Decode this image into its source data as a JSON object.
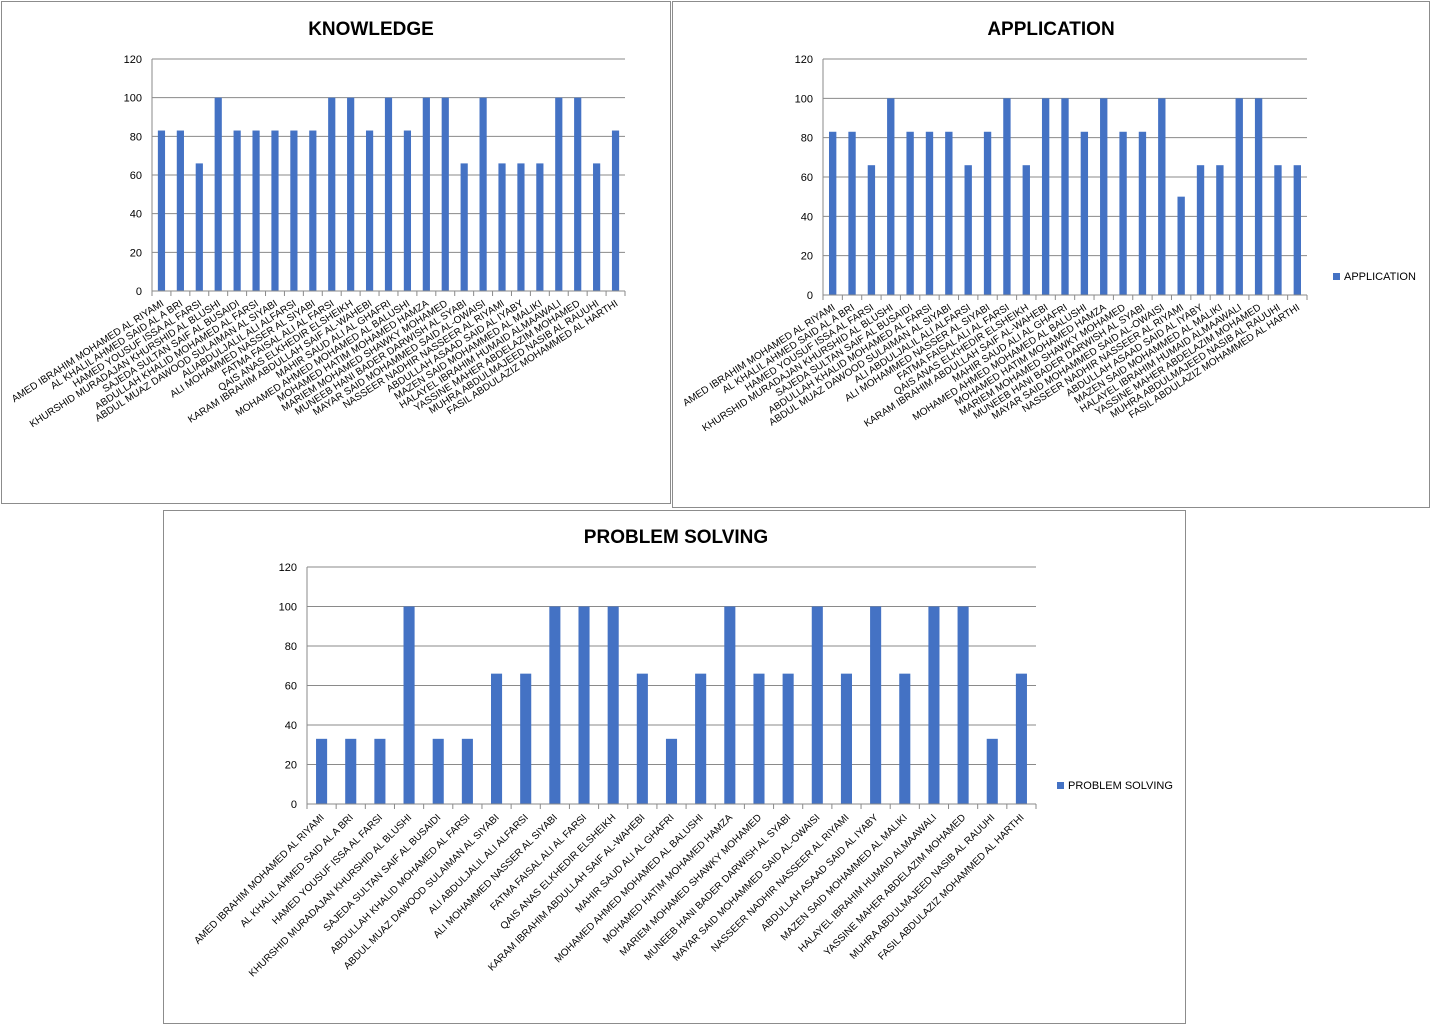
{
  "chart_data": [
    {
      "type": "bar",
      "title": "KNOWLEDGE",
      "xlabel": "",
      "ylabel": "",
      "ylim": [
        0,
        120
      ],
      "yticks": [
        0,
        20,
        40,
        60,
        80,
        100,
        120
      ],
      "grid": true,
      "legend": null,
      "color": "#4472C4",
      "categories": [
        "AMED IBRAHIM MOHAMED  AL RIYAMI",
        "AL KHALIL AHMED SAID AL A BRI",
        "HAMED YOUSUF ISSA AL FARSI",
        "KHURSHID MURADAJAN KHURSHID AL BLUSHI",
        "SAJEDA SULTAN SAIF AL BUSAIDI",
        "ABDULLAH KHALID MOHAMED AL FARSI",
        "ABDUL MUAZ  DAWOOD SULAIMAN AL SIYABI",
        "ALIABDULJALIL ALI ALFARSI",
        "ALI MOHAMMED  NASSER  AL SIYABI",
        "FATMA FAISAL ALI AL FARSI",
        "QAIS ANAS ELKHEDIR  ELSHEIKH",
        "KARAM IBRAHIM  ABDULLAH SAIF AL-WAHEBI",
        "MAHIR SAUD ALI AL GHAFRI",
        "MOHAMED AHMED  MOHAMED AL BALUSHI",
        "MOHAMED HATIM  MOHAMED  HAMZA",
        "MARIEM MOHAMED SHAWKY MOHAMED",
        "MUNEEB HANI BADER  DARWISH AL SYABI",
        "MAYAR SAID MOHAMMED  SAID AL-OWAISI",
        "NASSEER NADHIR NASSEER AL RIYAMI",
        "ABDULLAH ASAAD SAID AL IYABY",
        "MAZEN SAID MOHAMMED AL MALIKI",
        "HALAYEL IBRAHIM  HUMAID  ALMAAWALI",
        "YASSINE MAHER ABDELAZIM  MOHAMED",
        "MUHRA ABDULMAJEED NASIB AL RAUUHI",
        "FASIL ABDULAZIZ MOHAMMED  AL HARTHI"
      ],
      "values": [
        83,
        83,
        66,
        100,
        83,
        83,
        83,
        83,
        83,
        100,
        100,
        83,
        100,
        83,
        100,
        100,
        66,
        100,
        66,
        66,
        66,
        100,
        100,
        66,
        83
      ]
    },
    {
      "type": "bar",
      "title": "APPLICATION",
      "xlabel": "",
      "ylabel": "",
      "ylim": [
        0,
        120
      ],
      "yticks": [
        0,
        20,
        40,
        60,
        80,
        100,
        120
      ],
      "grid": true,
      "legend": "APPLICATION",
      "color": "#4472C4",
      "categories": [
        "AMED IBRAHIM MOHAMED  AL RIYAMI",
        "AL KHALIL AHMED SAID AL A BRI",
        "HAMED YOUSUF ISSA AL FARSI",
        "KHURSHID MURADAJAN KHURSHID AL BLUSHI",
        "SAJEDA SULTAN SAIF AL BUSAIDI",
        "ABDULLAH KHALID MOHAMED AL FARSI",
        "ABDUL MUAZ  DAWOOD SULAIMAN AL SIYABI",
        "ALI ABDULJALIL ALI ALFARSI",
        "ALI MOHAMMED  NASSER  AL SIYABI",
        "FATMA FAISAL ALI AL FARSI",
        "QAIS ANAS ELKHEDIR  ELSHEIKH",
        "KARAM IBRAHIM  ABDULLAH SAIF AL-WAHEBI",
        "MAHIR SAUD ALI AL GHAFRI",
        "MOHAMED AHMED  MOHAMED AL BALUSHI",
        "MOHAMED HATIM  MOHAMED  HAMZA",
        "MARIEM MOHAMED SHAWKY MOHAMED",
        "MUNEEB HANI BADER  DARWISH AL SYABI",
        "MAYAR SAID MOHAMMED  SAID AL-OWAISI",
        "NASSEER NADHIR NASSEER AL RIYAMI",
        "ABDULLAH ASAAD SAID AL IYABY",
        "MAZEN SAID MOHAMMED AL MALIKI",
        "HALAYEL IBRAHIM  HUMAID  ALMAAWALI",
        "YASSINE MAHER ABDELAZIM  MOHAMED",
        "MUHRA ABDULMAJEED NASIB AL RAUUHI",
        "FASIL ABDULAZIZ MOHAMMED  AL HARTHI"
      ],
      "values": [
        83,
        83,
        66,
        100,
        83,
        83,
        83,
        66,
        83,
        100,
        66,
        100,
        100,
        83,
        100,
        83,
        83,
        100,
        50,
        66,
        66,
        100,
        100,
        66,
        66
      ]
    },
    {
      "type": "bar",
      "title": "PROBLEM SOLVING",
      "xlabel": "",
      "ylabel": "",
      "ylim": [
        0,
        120
      ],
      "yticks": [
        0,
        20,
        40,
        60,
        80,
        100,
        120
      ],
      "grid": true,
      "legend": "PROBLEM SOLVING",
      "color": "#4472C4",
      "categories": [
        "AMED IBRAHIM MOHAMED  AL RIYAMI",
        "AL KHALIL AHMED SAID AL A BRI",
        "HAMED YOUSUF ISSA AL FARSI",
        "KHURSHID MURADAJAN KHURSHID AL BLUSHI",
        "SAJEDA SULTAN SAIF AL BUSAIDI",
        "ABDULLAH KHALID MOHAMED AL FARSI",
        "ABDUL MUAZ  DAWOOD SULAIMAN AL SIYABI",
        "ALI ABDULJALIL ALI ALFARSI",
        "ALI MOHAMMED  NASSER  AL SIYABI",
        "FATMA FAISAL ALI AL FARSI",
        "QAIS ANAS ELKHEDIR  ELSHEIKH",
        "KARAM IBRAHIM  ABDULLAH SAIF AL-WAHEBI",
        "MAHIR SAUD ALI AL GHAFRI",
        "MOHAMED AHMED  MOHAMED AL BALUSHI",
        "MOHAMED HATIM  MOHAMED  HAMZA",
        "MARIEM MOHAMED SHAWKY MOHAMED",
        "MUNEEB HANI BADER  DARWISH AL SYABI",
        "MAYAR SAID MOHAMMED  SAID AL-OWAISI",
        "NASSEER NADHIR NASSEER AL RIYAMI",
        "ABDULLAH ASAAD SAID AL IYABY",
        "MAZEN SAID MOHAMMED AL MALIKI",
        "HALAYEL IBRAHIM  HUMAID  ALMAAWALI",
        "YASSINE MAHER ABDELAZIM  MOHAMED",
        "MUHRA ABDULMAJEED NASIB AL RAUUHI",
        "FASIL ABDULAZIZ MOHAMMED  AL HARTHI"
      ],
      "values": [
        33,
        33,
        33,
        100,
        33,
        33,
        66,
        66,
        100,
        100,
        100,
        66,
        33,
        66,
        100,
        66,
        66,
        100,
        66,
        100,
        66,
        100,
        100,
        33,
        66
      ]
    }
  ]
}
